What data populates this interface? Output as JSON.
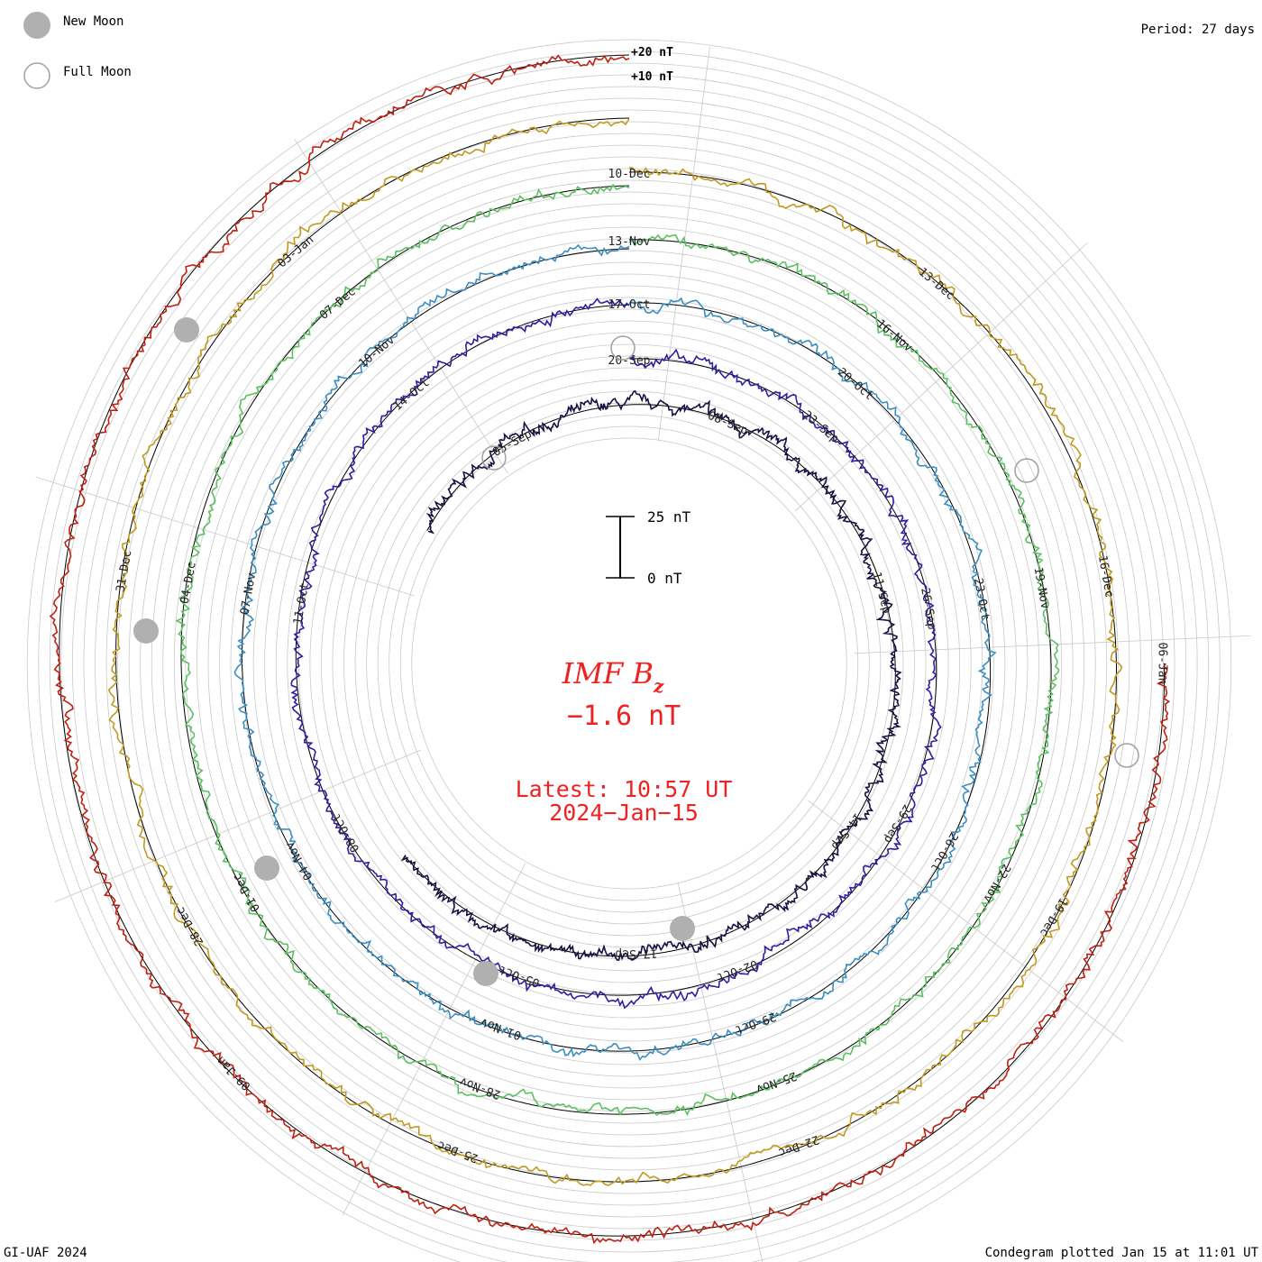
{
  "legend": {
    "new_moon": "New Moon",
    "full_moon": "Full Moon"
  },
  "period": "Period: 27 days",
  "scale": {
    "ring_top": "+20 nT",
    "ring_mid": "+10 nT",
    "bar_top": "25 nT",
    "bar_bottom": "0 nT"
  },
  "center": {
    "title_main": "IMF B",
    "title_sub": "z",
    "value": "−1.6 nT",
    "latest": "Latest: 10:57 UT",
    "date": "2024−Jan−15"
  },
  "footer": {
    "left": "GI-UAF 2024",
    "right": "Condegram plotted Jan 15 at 11:01 UT"
  },
  "colors": {
    "title": "#ee2222",
    "grid": "#c8c8c8",
    "moon": "#b0b0b0"
  },
  "chart_data": {
    "type": "line",
    "subtype": "condegram (spiral polar time series)",
    "quantity": "IMF Bz",
    "units": "nT",
    "period_days": 27,
    "date_range": [
      "2023-09-05",
      "2024-01-15"
    ],
    "latest_value": -1.6,
    "latest_time": "2024-01-15 10:57 UT",
    "rotations": [
      {
        "color": "#151040",
        "date_labels": [
          "05-Sep",
          "08-Sep",
          "11-Sep",
          "14-Sep",
          "17-Sep"
        ]
      },
      {
        "color": "#2c1fa0",
        "date_labels": [
          "20-Sep",
          "23-Sep",
          "26-Sep",
          "29-Sep",
          "02-Oct",
          "05-Oct",
          "08-Oct",
          "11-Oct",
          "14-Oct"
        ]
      },
      {
        "color": "#3a8fc0",
        "date_labels": [
          "17-Oct",
          "20-Oct",
          "23-Oct",
          "26-Oct",
          "29-Oct",
          "01-Nov",
          "04-Nov",
          "07-Nov",
          "10-Nov"
        ]
      },
      {
        "color": "#5cc060",
        "date_labels": [
          "13-Nov",
          "16-Nov",
          "19-Nov",
          "22-Nov",
          "25-Nov",
          "28-Nov",
          "01-Dec",
          "04-Dec",
          "07-Dec"
        ]
      },
      {
        "color": "#c09a20",
        "date_labels": [
          "10-Dec",
          "13-Dec",
          "16-Dec",
          "19-Dec",
          "22-Dec",
          "25-Dec",
          "28-Dec",
          "31-Dec",
          "03-Jan"
        ]
      },
      {
        "color": "#c02010",
        "date_labels": [
          "06-Jan",
          "09-Jan"
        ]
      }
    ],
    "ring_ticks": [
      "+10 nT",
      "+20 nT"
    ],
    "scale_bar": {
      "min": 0,
      "max": 25,
      "unit": "nT"
    }
  }
}
